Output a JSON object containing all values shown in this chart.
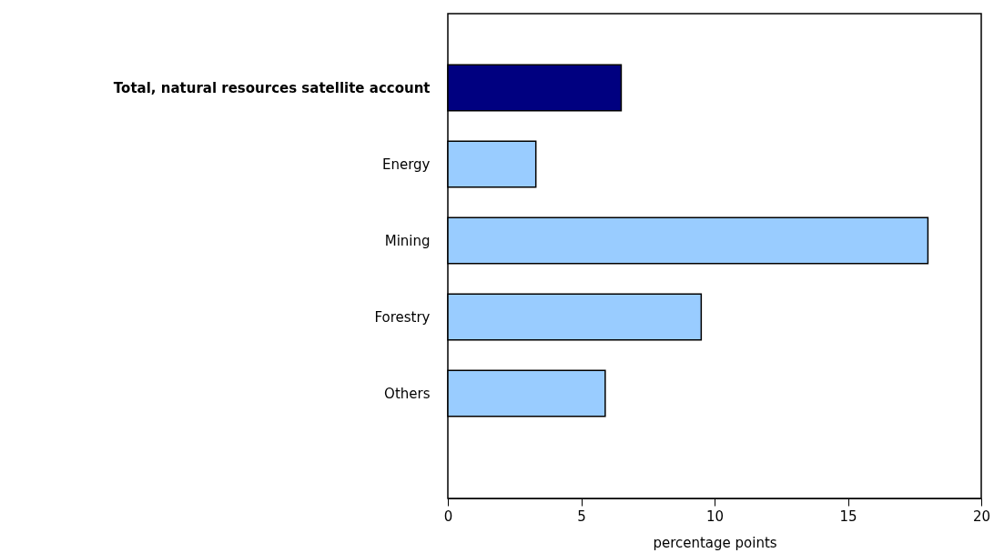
{
  "chart_data": {
    "type": "bar",
    "orientation": "horizontal",
    "categories": [
      "Total, natural resources satellite account",
      "Energy",
      "Mining",
      "Forestry",
      "Others"
    ],
    "values": [
      6.5,
      3.3,
      18.0,
      9.5,
      5.9
    ],
    "colors": [
      "#000080",
      "#99ccff",
      "#99ccff",
      "#99ccff",
      "#99ccff"
    ],
    "xlabel": "percentage points",
    "xlim": [
      0,
      20
    ],
    "xticks": [
      0,
      5,
      10,
      15,
      20
    ],
    "grid": false
  }
}
